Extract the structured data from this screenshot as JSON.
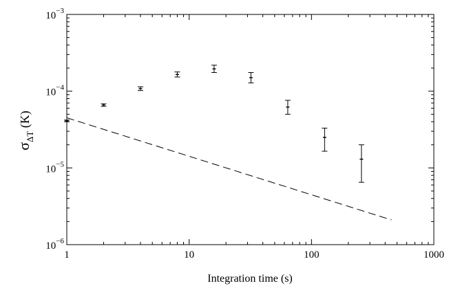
{
  "chart_data": {
    "type": "scatter",
    "title": "",
    "xlabel": "Integration time (s)",
    "ylabel": {
      "symbol": "σ",
      "subscript": "ΔT",
      "unit": " (K)"
    },
    "xscale": "log",
    "yscale": "log",
    "xlim": [
      1,
      1000
    ],
    "ylim": [
      1e-06,
      0.001
    ],
    "x_tick_labels": [
      "1",
      "10",
      "100",
      "1000"
    ],
    "y_tick_labels": [
      {
        "base": "10",
        "exp": "−6"
      },
      {
        "base": "10",
        "exp": "−5"
      },
      {
        "base": "10",
        "exp": "−4"
      },
      {
        "base": "10",
        "exp": "−3"
      }
    ],
    "grid": false,
    "legend": "none",
    "series": [
      {
        "style": "errorbar",
        "x": [
          1,
          2,
          4,
          8,
          16,
          32,
          64,
          128,
          256
        ],
        "y": [
          4.1e-05,
          6.6e-05,
          0.000108,
          0.000165,
          0.000195,
          0.00015,
          6.2e-05,
          2.5e-05,
          1.3e-05
        ],
        "y_low": [
          4e-05,
          6.35e-05,
          0.000102,
          0.000153,
          0.000175,
          0.000128,
          5e-05,
          1.65e-05,
          6.5e-06
        ],
        "y_high": [
          4.2e-05,
          6.85e-05,
          0.000114,
          0.000178,
          0.000218,
          0.000175,
          7.6e-05,
          3.3e-05,
          2e-05
        ]
      },
      {
        "style": "dashed-line",
        "x": [
          1,
          450
        ],
        "y": [
          4.5e-05,
          2.1e-06
        ]
      }
    ]
  }
}
